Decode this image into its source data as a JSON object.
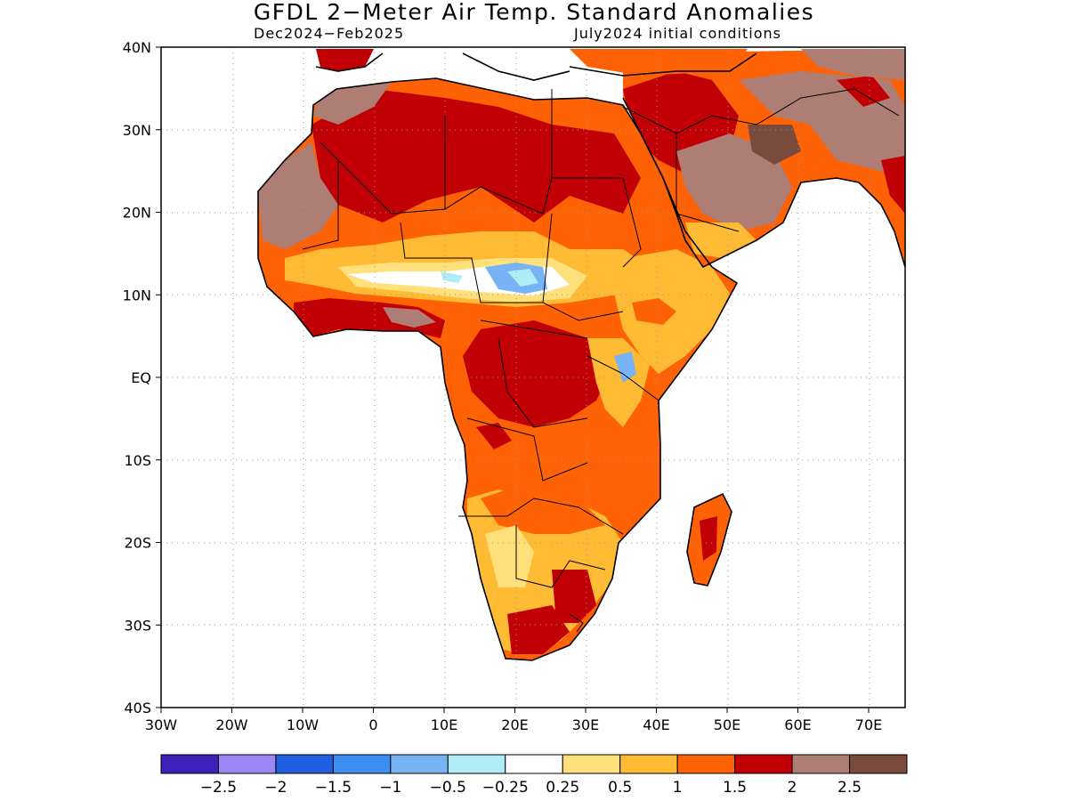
{
  "title": "GFDL 2−Meter Air Temp. Standard Anomalies",
  "subtitle_left": "Dec2024−Feb2025",
  "subtitle_right": "July2024 initial conditions",
  "lat_labels": [
    "40N",
    "30N",
    "20N",
    "10N",
    "EQ",
    "10S",
    "20S",
    "30S",
    "40S"
  ],
  "lon_labels": [
    "30W",
    "20W",
    "10W",
    "0",
    "10E",
    "20E",
    "30E",
    "40E",
    "50E",
    "60E",
    "70E"
  ],
  "colorbar": {
    "colors": [
      "#3d21b8",
      "#9b87f5",
      "#1f5fe0",
      "#3c8ff0",
      "#78b4f5",
      "#b0ecf8",
      "#ffffff",
      "#ffe07a",
      "#ffbb33",
      "#ff6205",
      "#c00005",
      "#ae7d74",
      "#7a4a3d"
    ],
    "labels": [
      "−2.5",
      "−2",
      "−1.5",
      "−1",
      "−0.5",
      "−0.25",
      "0.25",
      "0.5",
      "1",
      "1.5",
      "2",
      "2.5"
    ]
  },
  "palette": {
    "dark_red": "#c00005",
    "orange": "#ff6205",
    "light_orange": "#ffbb33",
    "yellow": "#ffe07a",
    "brown": "#ae7d74",
    "dark_brown": "#7a4a3d",
    "light_blue": "#78b4f5",
    "cyan": "#b0ecf8"
  }
}
